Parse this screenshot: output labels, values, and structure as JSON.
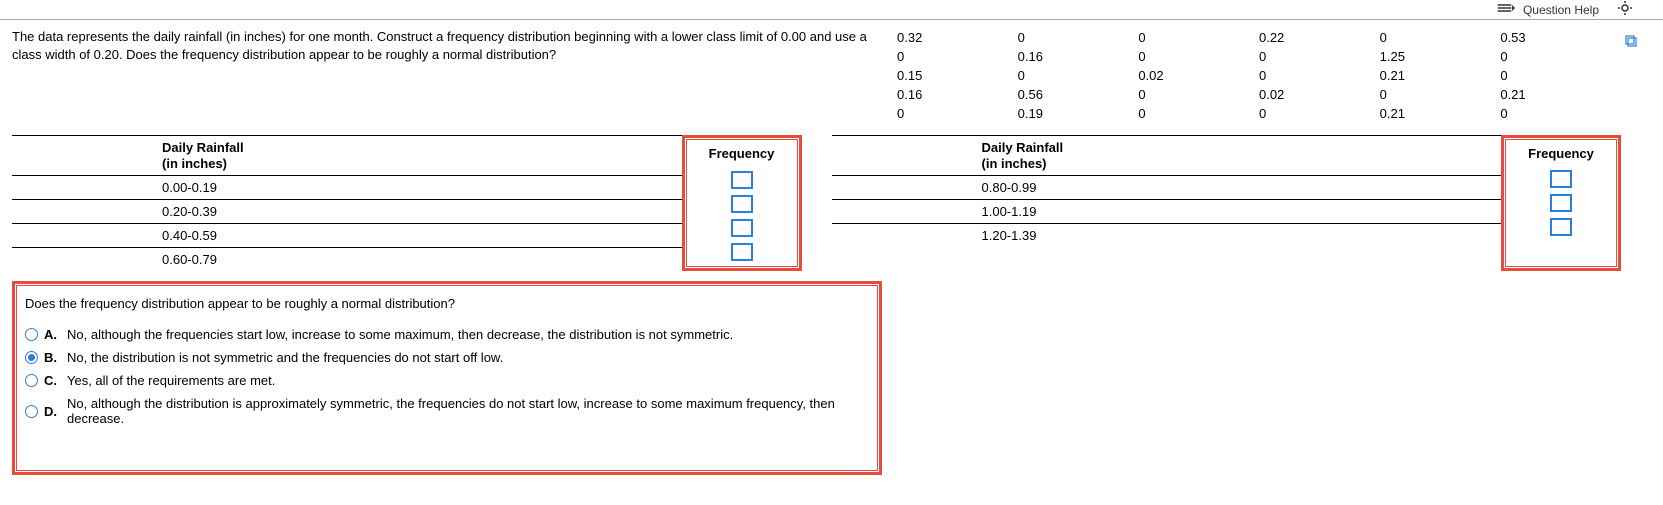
{
  "topbar": {
    "question_help": "Question Help"
  },
  "problem": {
    "text": "The data represents the daily rainfall (in inches) for one month. Construct a frequency distribution beginning with a lower class limit of 0.00 and use a class width of 0.20. Does the frequency distribution appear to be roughly a normal distribution?"
  },
  "data_grid": {
    "rows": [
      [
        "0.32",
        "0",
        "0",
        "0.22",
        "0",
        "0.53"
      ],
      [
        "0",
        "0.16",
        "0",
        "0",
        "1.25",
        "0"
      ],
      [
        "0.15",
        "0",
        "0.02",
        "0",
        "0.21",
        "0"
      ],
      [
        "0.16",
        "0.56",
        "0",
        "0.02",
        "0",
        "0.21"
      ],
      [
        "0",
        "0.19",
        "0",
        "0",
        "0.21",
        "0"
      ]
    ]
  },
  "tables": {
    "header_label": "Daily Rainfall\n(in inches)",
    "header_freq": "Frequency",
    "left_classes": [
      "0.00-0.19",
      "0.20-0.39",
      "0.40-0.59",
      "0.60-0.79"
    ],
    "right_classes": [
      "0.80-0.99",
      "1.00-1.19",
      "1.20-1.39"
    ]
  },
  "question": {
    "prompt": "Does the frequency distribution appear to be roughly a normal distribution?",
    "options": [
      {
        "letter": "A.",
        "text": "No, although the frequencies start low, increase to some maximum, then decrease, the distribution is not symmetric."
      },
      {
        "letter": "B.",
        "text": "No, the distribution is not symmetric and the frequencies do not start off low."
      },
      {
        "letter": "C.",
        "text": "Yes, all of the requirements are met."
      },
      {
        "letter": "D.",
        "text": "No, although the distribution is approximately symmetric, the frequencies do not start low, increase to some maximum frequency, then decrease."
      }
    ],
    "selected_index": 1
  },
  "colors": {
    "highlight": "#e74c3c",
    "input_border": "#2b7de0"
  }
}
